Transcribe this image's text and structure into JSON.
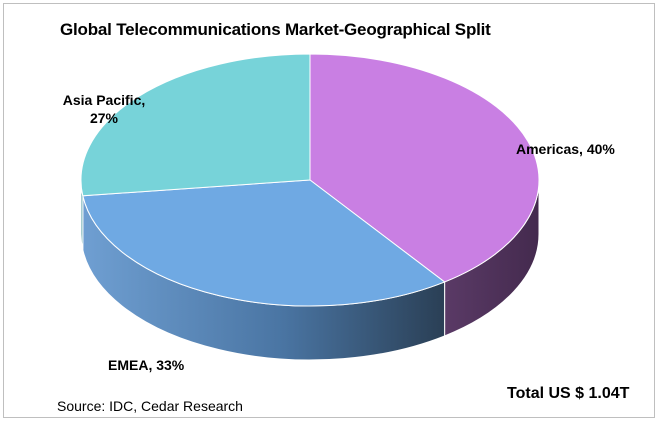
{
  "chart_data": {
    "type": "pie",
    "title": "Global Telecommunications Market-Geographical Split",
    "slices": [
      {
        "name": "Americas",
        "value": 40,
        "label": "Americas, 40%",
        "color": "#c97fe3",
        "side_color": "#55335f"
      },
      {
        "name": "EMEA",
        "value": 33,
        "label": "EMEA, 33%",
        "color": "#6fa9e3",
        "side_color": "#3f6a95"
      },
      {
        "name": "Asia Pacific",
        "value": 27,
        "label_line1": "Asia Pacific,",
        "label_line2": "27%",
        "color": "#77d3d9",
        "side_color": "#4a9aa0"
      }
    ],
    "style": "3d-pie",
    "legend": "none"
  },
  "notes": {
    "total": "Total US $ 1.04T",
    "source": "Source: IDC, Cedar Research"
  }
}
